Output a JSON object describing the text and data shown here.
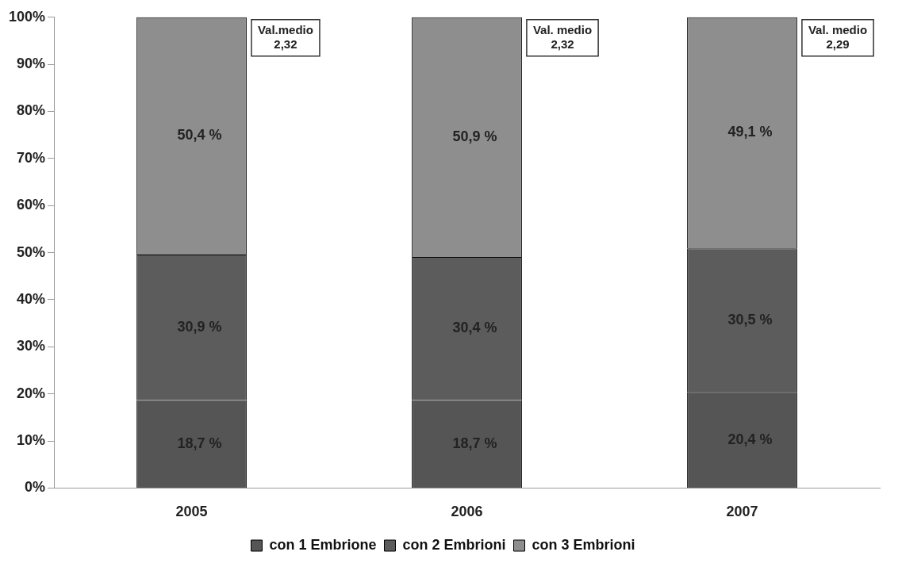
{
  "chart_data": {
    "type": "bar",
    "stacked": true,
    "categories": [
      "2005",
      "2006",
      "2007"
    ],
    "series": [
      {
        "name": "con 1 Embrione",
        "color": "#555555",
        "values": [
          18.7,
          18.7,
          20.4
        ],
        "value_labels": [
          "18,7 %",
          "18,7 %",
          "20,4 %"
        ]
      },
      {
        "name": "con 2 Embrioni",
        "color": "#5c5c5c",
        "values": [
          30.9,
          30.4,
          30.5
        ],
        "value_labels": [
          "30,9 %",
          "30,4 %",
          "30,5 %"
        ]
      },
      {
        "name": "con 3 Embrioni",
        "color": "#8e8e8e",
        "values": [
          50.4,
          50.9,
          49.1
        ],
        "value_labels": [
          "50,4 %",
          "50,9 %",
          "49,1 %"
        ]
      }
    ],
    "ylim": [
      0,
      100
    ],
    "yticks": [
      {
        "value": 0,
        "label": "0%"
      },
      {
        "value": 10,
        "label": "10%"
      },
      {
        "value": 20,
        "label": "20%"
      },
      {
        "value": 30,
        "label": "30%"
      },
      {
        "value": 40,
        "label": "40%"
      },
      {
        "value": 50,
        "label": "50%"
      },
      {
        "value": 60,
        "label": "60%"
      },
      {
        "value": 70,
        "label": "70%"
      },
      {
        "value": 80,
        "label": "80%"
      },
      {
        "value": 90,
        "label": "90%"
      },
      {
        "value": 100,
        "label": "100%"
      }
    ],
    "annotations": [
      "Val.medio\n2,32",
      "Val. medio\n2,32",
      "Val. medio\n2,29"
    ],
    "grid": false,
    "legend": "bottom"
  }
}
